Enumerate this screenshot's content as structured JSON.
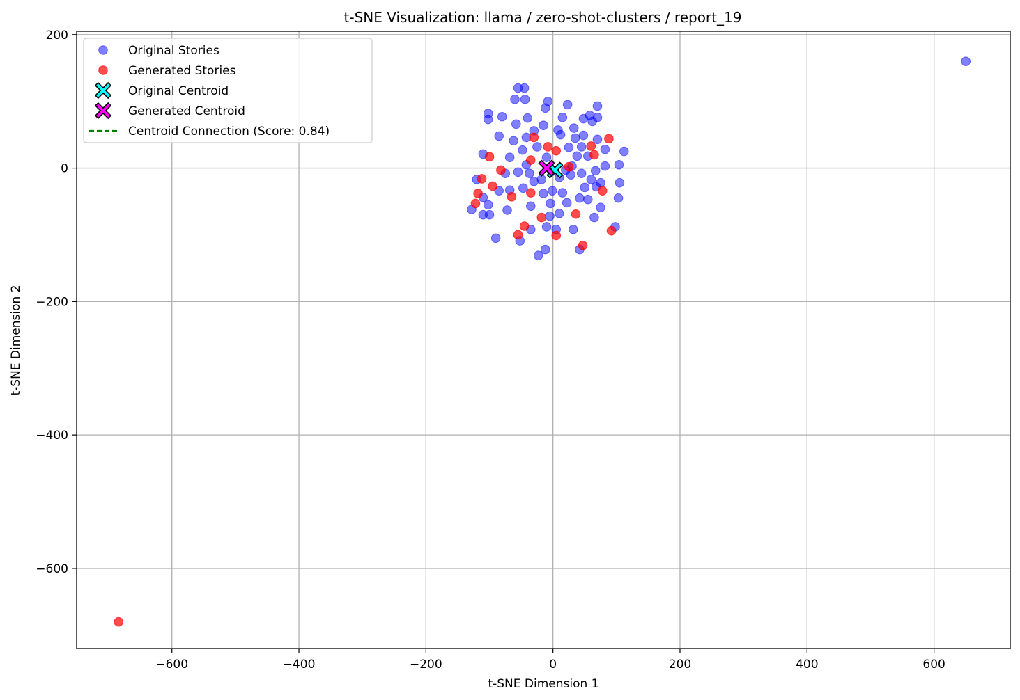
{
  "chart_data": {
    "type": "scatter",
    "title": "t-SNE Visualization: llama / zero-shot-clusters / report_19",
    "xlabel": "t-SNE Dimension 1",
    "ylabel": "t-SNE Dimension 2",
    "xlim": [
      -750,
      720
    ],
    "ylim": [
      -720,
      205
    ],
    "x_ticks": [
      -600,
      -400,
      -200,
      0,
      200,
      400,
      600
    ],
    "y_ticks": [
      200,
      0,
      -200,
      -400,
      -600
    ],
    "x_tick_labels": [
      "−600",
      "−400",
      "−200",
      "0",
      "200",
      "400",
      "600"
    ],
    "y_tick_labels": [
      "200",
      "0",
      "−200",
      "−400",
      "−600"
    ],
    "grid": true,
    "legend_position": "top-left",
    "colors": {
      "original": "#0000ff",
      "generated": "#ff0000",
      "original_centroid": "#00ffff",
      "generated_centroid": "#ff00ff",
      "connection": "#008000"
    },
    "legend": [
      {
        "label": "Original Stories",
        "kind": "original"
      },
      {
        "label": "Generated Stories",
        "kind": "generated"
      },
      {
        "label": "Original Centroid",
        "kind": "original_centroid"
      },
      {
        "label": "Generated Centroid",
        "kind": "generated_centroid"
      },
      {
        "label": "Centroid Connection (Score: 0.84)",
        "kind": "connection"
      }
    ],
    "series": [
      {
        "name": "Original Stories",
        "points": [
          [
            -55,
            120
          ],
          [
            -45,
            120
          ],
          [
            -8,
            100
          ],
          [
            -60,
            103
          ],
          [
            -44,
            103
          ],
          [
            23,
            95
          ],
          [
            70,
            93
          ],
          [
            -12,
            90
          ],
          [
            -102,
            82
          ],
          [
            -80,
            77
          ],
          [
            -102,
            73
          ],
          [
            15,
            76
          ],
          [
            58,
            79
          ],
          [
            70,
            76
          ],
          [
            -40,
            75
          ],
          [
            -58,
            66
          ],
          [
            -15,
            64
          ],
          [
            48,
            74
          ],
          [
            62,
            70
          ],
          [
            33,
            60
          ],
          [
            -30,
            56
          ],
          [
            8,
            57
          ],
          [
            12,
            50
          ],
          [
            48,
            49
          ],
          [
            -85,
            48
          ],
          [
            -42,
            46
          ],
          [
            35,
            45
          ],
          [
            70,
            43
          ],
          [
            -62,
            41
          ],
          [
            -25,
            32
          ],
          [
            -48,
            27
          ],
          [
            25,
            31
          ],
          [
            45,
            32
          ],
          [
            82,
            28
          ],
          [
            112,
            25
          ],
          [
            -110,
            21
          ],
          [
            -68,
            16
          ],
          [
            -10,
            16
          ],
          [
            38,
            18
          ],
          [
            55,
            18
          ],
          [
            104,
            5
          ],
          [
            -42,
            5
          ],
          [
            30,
            3
          ],
          [
            82,
            3
          ],
          [
            -5,
            1
          ],
          [
            -75,
            -8
          ],
          [
            -55,
            -6
          ],
          [
            -37,
            -8
          ],
          [
            -2,
            -5
          ],
          [
            20,
            -3
          ],
          [
            45,
            -8
          ],
          [
            67,
            -4
          ],
          [
            -120,
            -17
          ],
          [
            -30,
            -20
          ],
          [
            -18,
            -17
          ],
          [
            10,
            -14
          ],
          [
            28,
            -10
          ],
          [
            60,
            -17
          ],
          [
            75,
            -22
          ],
          [
            105,
            -22
          ],
          [
            -47,
            -30
          ],
          [
            -68,
            -33
          ],
          [
            -85,
            -34
          ],
          [
            -1,
            -34
          ],
          [
            15,
            -37
          ],
          [
            50,
            -29
          ],
          [
            68,
            -28
          ],
          [
            -110,
            -44
          ],
          [
            -15,
            -38
          ],
          [
            42,
            -45
          ],
          [
            55,
            -47
          ],
          [
            103,
            -45
          ],
          [
            -102,
            -55
          ],
          [
            -35,
            -57
          ],
          [
            -4,
            -53
          ],
          [
            22,
            -52
          ],
          [
            75,
            -59
          ],
          [
            -128,
            -62
          ],
          [
            -72,
            -63
          ],
          [
            -110,
            -70
          ],
          [
            -100,
            -70
          ],
          [
            -5,
            -72
          ],
          [
            10,
            -68
          ],
          [
            65,
            -74
          ],
          [
            -35,
            -92
          ],
          [
            -10,
            -88
          ],
          [
            5,
            -92
          ],
          [
            32,
            -92
          ],
          [
            98,
            -88
          ],
          [
            -90,
            -105
          ],
          [
            -52,
            -109
          ],
          [
            -12,
            -122
          ],
          [
            42,
            -122
          ],
          [
            -23,
            -131
          ],
          [
            650,
            160
          ]
        ]
      },
      {
        "name": "Generated Stories",
        "points": [
          [
            -30,
            46
          ],
          [
            -8,
            32
          ],
          [
            5,
            26
          ],
          [
            60,
            33
          ],
          [
            88,
            44
          ],
          [
            -100,
            17
          ],
          [
            -35,
            12
          ],
          [
            65,
            20
          ],
          [
            -82,
            -3
          ],
          [
            -112,
            -16
          ],
          [
            -95,
            -27
          ],
          [
            25,
            2
          ],
          [
            -35,
            -37
          ],
          [
            -118,
            -38
          ],
          [
            -65,
            -43
          ],
          [
            78,
            -34
          ],
          [
            -122,
            -53
          ],
          [
            -18,
            -74
          ],
          [
            36,
            -69
          ],
          [
            -45,
            -87
          ],
          [
            -55,
            -100
          ],
          [
            5,
            -101
          ],
          [
            92,
            -94
          ],
          [
            47,
            -116
          ],
          [
            -684,
            -680
          ]
        ]
      }
    ],
    "centroids": {
      "original": [
        3,
        -3
      ],
      "generated": [
        -10,
        0
      ]
    }
  }
}
